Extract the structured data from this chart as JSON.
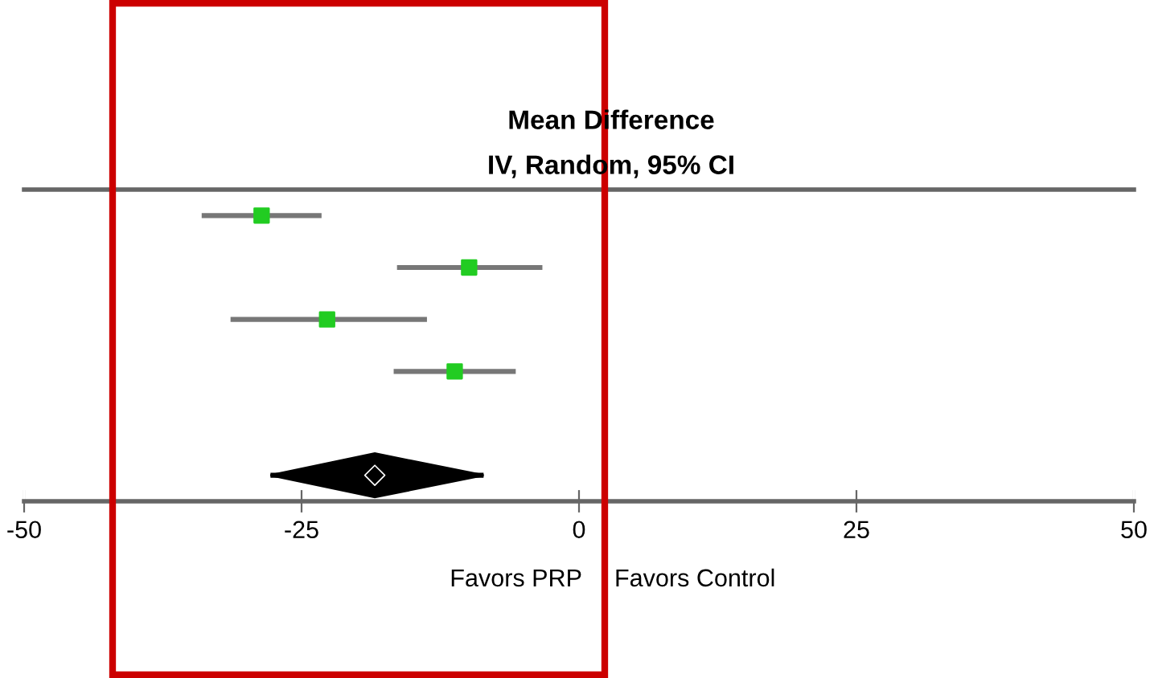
{
  "chart_data": {
    "type": "scatter",
    "title": "Mean Difference",
    "subtitle": "IV, Random, 95% CI",
    "orientation": "horizontal",
    "categories": [
      null,
      null,
      null,
      null,
      null,
      null
    ],
    "series": [
      {
        "color": "#22cc22",
        "marker": "square",
        "values": [
          -28.6,
          -9.9,
          -22.7,
          -11.2,
          null,
          null
        ],
        "errors": [
          [
            -34.0,
            -23.2
          ],
          [
            -16.4,
            -3.3
          ],
          [
            -31.4,
            -13.7
          ],
          [
            -16.7,
            -5.7
          ],
          null,
          null
        ]
      },
      {
        "color": "#000000",
        "marker": "diamond",
        "values": [
          null,
          null,
          null,
          null,
          null,
          -18.4
        ],
        "errors": [
          null,
          null,
          null,
          null,
          null,
          [
            -27.8,
            -8.6
          ]
        ]
      }
    ],
    "xlim": [
      -50,
      50
    ],
    "xticks": [
      -50,
      -25,
      0,
      25,
      50
    ],
    "annotations": [
      "Favors PRP",
      "Favors Control"
    ],
    "grid": false,
    "legend": false
  }
}
